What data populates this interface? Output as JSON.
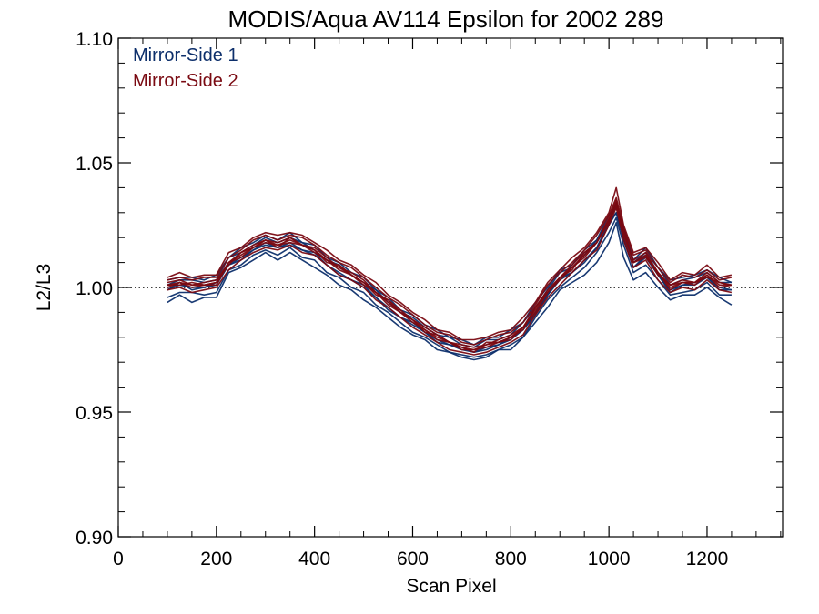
{
  "chart_data": {
    "type": "line",
    "title": "MODIS/Aqua AV114 Epsilon for 2002 289",
    "xlabel": "Scan Pixel",
    "ylabel": "L2/L3",
    "xlim": [
      0,
      1354
    ],
    "ylim": [
      0.9,
      1.1
    ],
    "x_ticks": [
      0,
      200,
      400,
      600,
      800,
      1000,
      1200
    ],
    "x_tick_labels": [
      "0",
      "200",
      "400",
      "600",
      "800",
      "1000",
      "1200"
    ],
    "y_ticks": [
      0.9,
      0.95,
      1.0,
      1.05,
      1.1
    ],
    "y_tick_labels": [
      "0.90",
      "0.95",
      "1.00",
      "1.05",
      "1.10"
    ],
    "x_minor_step": 50,
    "y_minor_step": 0.01,
    "reference_line": {
      "y": 1.0,
      "style": "dotted"
    },
    "grid": false,
    "legend_position": "top-left",
    "x": [
      100,
      125,
      150,
      175,
      200,
      225,
      250,
      275,
      300,
      325,
      350,
      375,
      400,
      425,
      450,
      475,
      500,
      525,
      550,
      575,
      600,
      625,
      650,
      675,
      700,
      725,
      750,
      775,
      800,
      825,
      850,
      875,
      900,
      925,
      950,
      975,
      1000,
      1015,
      1030,
      1050,
      1075,
      1100,
      1125,
      1150,
      1175,
      1200,
      1225,
      1250
    ],
    "series": [
      {
        "name": "Mirror-Side 1",
        "color": "#0d2f6b",
        "values": [
          0.999,
          1.001,
          1.0,
          1.0,
          1.001,
          1.009,
          1.012,
          1.015,
          1.017,
          1.016,
          1.018,
          1.015,
          1.013,
          1.009,
          1.006,
          1.003,
          1.0,
          0.996,
          0.992,
          0.988,
          0.985,
          0.982,
          0.979,
          0.977,
          0.975,
          0.974,
          0.976,
          0.977,
          0.979,
          0.983,
          0.99,
          0.997,
          1.003,
          1.006,
          1.011,
          1.016,
          1.025,
          1.03,
          1.02,
          1.008,
          1.012,
          1.005,
          0.999,
          1.001,
          1.001,
          1.004,
          1.0,
          0.999
        ],
        "runs": [
          [
            -0.005,
            -0.004,
            -0.006,
            -0.004,
            -0.005,
            -0.003,
            -0.004,
            -0.004,
            -0.003,
            -0.005,
            -0.004,
            -0.004,
            -0.005,
            -0.004,
            -0.005,
            -0.004,
            -0.005,
            -0.004,
            -0.004,
            -0.004,
            -0.004,
            -0.003,
            -0.004,
            -0.003,
            -0.003,
            -0.003,
            -0.004,
            -0.002,
            -0.004,
            -0.003,
            -0.004,
            -0.005,
            -0.004,
            -0.004,
            -0.006,
            -0.006,
            -0.007,
            -0.004,
            -0.008,
            -0.005,
            -0.006,
            -0.005,
            -0.004,
            -0.004,
            -0.004,
            -0.004,
            -0.004,
            -0.006
          ],
          [
            -0.003,
            -0.003,
            -0.002,
            -0.003,
            -0.003,
            -0.002,
            -0.003,
            -0.002,
            -0.002,
            -0.003,
            -0.002,
            -0.003,
            -0.002,
            -0.003,
            -0.002,
            -0.003,
            -0.002,
            -0.003,
            -0.002,
            -0.002,
            -0.003,
            -0.002,
            -0.002,
            -0.003,
            -0.002,
            -0.002,
            -0.003,
            -0.002,
            -0.002,
            -0.003,
            -0.002,
            -0.002,
            -0.003,
            -0.002,
            -0.003,
            -0.002,
            -0.003,
            -0.002,
            -0.003,
            -0.002,
            -0.003,
            -0.002,
            -0.002,
            -0.003,
            -0.002,
            -0.002,
            -0.003,
            -0.002
          ],
          [
            0.0,
            0.001,
            -0.001,
            0.0,
            0.001,
            0.0,
            -0.001,
            0.0,
            0.001,
            0.0,
            -0.001,
            0.0,
            0.001,
            0.0,
            -0.001,
            0.0,
            0.001,
            0.0,
            -0.001,
            0.0,
            0.001,
            0.0,
            -0.001,
            0.0,
            0.001,
            0.0,
            -0.001,
            0.0,
            0.001,
            0.0,
            -0.001,
            0.0,
            0.001,
            0.0,
            -0.001,
            0.0,
            0.001,
            0.0,
            -0.001,
            0.0,
            0.001,
            0.0,
            -0.001,
            0.0,
            0.001,
            0.0,
            -0.001,
            0.0
          ],
          [
            0.002,
            0.002,
            0.003,
            0.002,
            0.002,
            0.003,
            0.002,
            0.002,
            0.003,
            0.002,
            0.002,
            0.003,
            0.002,
            0.002,
            0.003,
            0.002,
            0.002,
            0.003,
            0.002,
            0.002,
            0.003,
            0.002,
            0.002,
            0.003,
            0.002,
            0.002,
            0.003,
            0.002,
            0.002,
            0.003,
            0.002,
            0.002,
            0.003,
            0.002,
            0.002,
            0.003,
            0.002,
            0.002,
            0.003,
            0.002,
            0.002,
            0.003,
            0.002,
            0.002,
            0.003,
            0.002,
            0.002,
            0.003
          ],
          [
            0.004,
            0.003,
            0.004,
            0.003,
            0.004,
            0.003,
            0.004,
            0.003,
            0.004,
            0.003,
            0.004,
            0.003,
            0.004,
            0.003,
            0.004,
            0.003,
            0.004,
            0.003,
            0.004,
            0.003,
            0.004,
            0.003,
            0.004,
            0.003,
            0.004,
            0.003,
            0.004,
            0.003,
            0.004,
            0.003,
            0.004,
            0.003,
            0.004,
            0.003,
            0.004,
            0.003,
            0.004,
            0.003,
            0.004,
            0.003,
            0.004,
            0.003,
            0.004,
            0.003,
            0.004,
            0.003,
            0.004,
            0.003
          ]
        ]
      },
      {
        "name": "Mirror-Side 2",
        "color": "#7a0a12",
        "values": [
          1.001,
          1.002,
          1.001,
          1.001,
          1.002,
          1.01,
          1.013,
          1.016,
          1.019,
          1.017,
          1.019,
          1.017,
          1.015,
          1.011,
          1.008,
          1.005,
          1.002,
          0.998,
          0.994,
          0.99,
          0.987,
          0.983,
          0.98,
          0.978,
          0.976,
          0.975,
          0.977,
          0.978,
          0.98,
          0.984,
          0.991,
          0.998,
          1.004,
          1.008,
          1.013,
          1.018,
          1.027,
          1.034,
          1.022,
          1.01,
          1.013,
          1.006,
          1.0,
          1.002,
          1.002,
          1.005,
          1.001,
          1.001
        ],
        "runs": [
          [
            -0.002,
            -0.002,
            -0.003,
            -0.002,
            -0.002,
            -0.003,
            -0.002,
            -0.002,
            -0.003,
            -0.002,
            -0.002,
            -0.003,
            -0.002,
            -0.002,
            -0.003,
            -0.002,
            -0.002,
            -0.003,
            -0.002,
            -0.002,
            -0.003,
            -0.002,
            -0.002,
            -0.003,
            -0.002,
            -0.002,
            -0.003,
            -0.002,
            -0.002,
            -0.003,
            -0.002,
            -0.002,
            -0.003,
            -0.002,
            -0.002,
            -0.003,
            -0.002,
            -0.002,
            -0.003,
            -0.002,
            -0.002,
            -0.003,
            -0.002,
            -0.002,
            -0.003,
            -0.002,
            -0.002,
            -0.003
          ],
          [
            -0.001,
            0.0,
            -0.001,
            0.0,
            -0.001,
            0.0,
            -0.001,
            0.0,
            -0.001,
            0.0,
            -0.001,
            0.0,
            -0.001,
            0.0,
            -0.001,
            0.0,
            -0.001,
            0.0,
            -0.001,
            0.0,
            -0.001,
            0.0,
            -0.001,
            0.0,
            -0.001,
            0.0,
            -0.001,
            0.0,
            -0.001,
            0.0,
            -0.001,
            0.0,
            -0.001,
            0.0,
            -0.001,
            0.0,
            -0.001,
            0.0,
            -0.001,
            0.0,
            -0.001,
            0.0,
            -0.001,
            0.0,
            -0.001,
            0.0,
            -0.001,
            0.0
          ],
          [
            0.001,
            0.001,
            0.0,
            0.001,
            0.001,
            0.0,
            0.001,
            0.001,
            0.0,
            0.001,
            0.001,
            0.0,
            0.001,
            0.001,
            0.0,
            0.001,
            0.001,
            0.0,
            0.001,
            0.001,
            0.0,
            0.001,
            0.001,
            0.0,
            0.001,
            0.001,
            0.0,
            0.001,
            0.001,
            0.0,
            0.001,
            0.001,
            0.0,
            0.001,
            0.001,
            0.0,
            0.001,
            0.001,
            0.0,
            0.001,
            0.001,
            0.0,
            0.001,
            0.001,
            0.0,
            0.001,
            0.001,
            0.0
          ],
          [
            0.002,
            0.002,
            0.002,
            0.003,
            0.002,
            0.002,
            0.002,
            0.003,
            0.002,
            0.002,
            0.002,
            0.003,
            0.002,
            0.002,
            0.002,
            0.003,
            0.002,
            0.002,
            0.002,
            0.003,
            0.002,
            0.002,
            0.002,
            0.003,
            0.002,
            0.002,
            0.002,
            0.003,
            0.002,
            0.002,
            0.002,
            0.003,
            0.002,
            0.002,
            0.002,
            0.003,
            0.002,
            0.002,
            0.002,
            0.003,
            0.002,
            0.002,
            0.002,
            0.003,
            0.002,
            0.002,
            0.002,
            0.003
          ],
          [
            0.003,
            0.004,
            0.003,
            0.004,
            0.003,
            0.004,
            0.003,
            0.004,
            0.003,
            0.004,
            0.003,
            0.004,
            0.003,
            0.004,
            0.003,
            0.004,
            0.003,
            0.004,
            0.003,
            0.004,
            0.003,
            0.004,
            0.003,
            0.004,
            0.003,
            0.004,
            0.003,
            0.004,
            0.003,
            0.004,
            0.003,
            0.004,
            0.003,
            0.004,
            0.003,
            0.004,
            0.003,
            0.006,
            0.003,
            0.004,
            0.003,
            0.004,
            0.003,
            0.004,
            0.003,
            0.004,
            0.003,
            0.004
          ],
          [
            0.0,
            -0.001,
            0.001,
            0.0,
            0.0,
            -0.001,
            0.001,
            0.0,
            0.0,
            -0.001,
            0.001,
            0.0,
            0.0,
            -0.001,
            0.001,
            0.0,
            0.0,
            -0.001,
            0.001,
            0.0,
            0.0,
            -0.001,
            0.001,
            0.0,
            0.0,
            -0.001,
            0.001,
            0.0,
            0.0,
            -0.001,
            0.001,
            0.0,
            0.0,
            -0.001,
            0.001,
            0.0,
            0.0,
            -0.001,
            0.001,
            0.0,
            0.0,
            -0.001,
            0.001,
            0.0,
            0.0,
            -0.001,
            0.001,
            0.0
          ]
        ]
      }
    ]
  }
}
